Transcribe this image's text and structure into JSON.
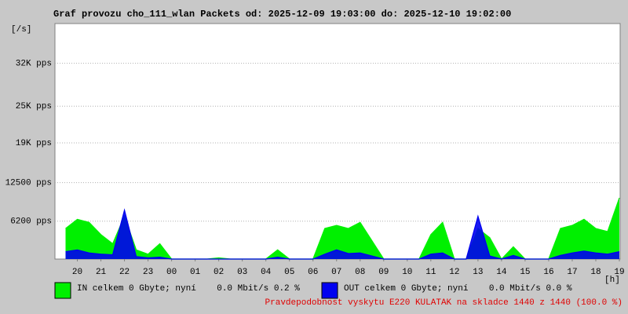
{
  "chart_data": {
    "type": "area",
    "title": "Graf provozu cho_111_wlan Packets od: 2025-12-09 19:03:00 do: 2025-12-10 19:02:00",
    "y_label": "[/s]",
    "x_label": "[h]",
    "note": "Pravdepodobnost vyskytu E220 KULATAK na skladce 1440 z 1440 (100.0 %)",
    "grid": true,
    "ylim": [
      0,
      38500
    ],
    "yticks": [
      {
        "value": 6200,
        "label": "6200 pps"
      },
      {
        "value": 12500,
        "label": "12500 pps"
      },
      {
        "value": 19000,
        "label": "19K pps"
      },
      {
        "value": 25000,
        "label": "25K pps"
      },
      {
        "value": 32000,
        "label": "32K pps"
      }
    ],
    "xlim": [
      19.05,
      43.033
    ],
    "xticks": [
      {
        "value": 20,
        "label": "20"
      },
      {
        "value": 21,
        "label": "21"
      },
      {
        "value": 22,
        "label": "22"
      },
      {
        "value": 23,
        "label": "23"
      },
      {
        "value": 24,
        "label": "00"
      },
      {
        "value": 25,
        "label": "01"
      },
      {
        "value": 26,
        "label": "02"
      },
      {
        "value": 27,
        "label": "03"
      },
      {
        "value": 28,
        "label": "04"
      },
      {
        "value": 29,
        "label": "05"
      },
      {
        "value": 30,
        "label": "06"
      },
      {
        "value": 31,
        "label": "07"
      },
      {
        "value": 32,
        "label": "08"
      },
      {
        "value": 33,
        "label": "09"
      },
      {
        "value": 34,
        "label": "10"
      },
      {
        "value": 35,
        "label": "11"
      },
      {
        "value": 36,
        "label": "12"
      },
      {
        "value": 37,
        "label": "13"
      },
      {
        "value": 38,
        "label": "14"
      },
      {
        "value": 39,
        "label": "15"
      },
      {
        "value": 40,
        "label": "16"
      },
      {
        "value": 41,
        "label": "17"
      },
      {
        "value": 42,
        "label": "18"
      },
      {
        "value": 43,
        "label": "19"
      }
    ],
    "x": [
      19.5,
      20,
      20.5,
      21,
      21.5,
      22,
      22.5,
      23,
      23.5,
      24,
      24.5,
      25,
      25.5,
      26,
      26.5,
      27,
      27.5,
      28,
      28.5,
      29,
      29.5,
      30,
      30.5,
      31,
      31.5,
      32,
      32.5,
      33,
      33.5,
      34,
      34.5,
      35,
      35.5,
      36,
      36.5,
      37,
      37.5,
      38,
      38.5,
      39,
      39.5,
      40,
      40.5,
      41,
      41.5,
      42,
      42.5,
      43
    ],
    "series": [
      {
        "name": "IN celkem 0 Gbyte; nyní    0.0 Mbit/s 0.2 %",
        "color": "#00f000",
        "values": [
          5000,
          6500,
          6000,
          4000,
          2500,
          7000,
          1500,
          800,
          2500,
          0,
          0,
          0,
          0,
          200,
          0,
          0,
          0,
          0,
          1500,
          0,
          0,
          0,
          5000,
          5500,
          5000,
          6000,
          3000,
          0,
          0,
          0,
          0,
          4000,
          6000,
          0,
          0,
          5000,
          3500,
          0,
          2000,
          0,
          0,
          0,
          5000,
          5500,
          6500,
          5000,
          4500,
          10000
        ]
      },
      {
        "name": "OUT celkem 0 Gbyte; nyní    0.0 Mbit/s 0.0 %",
        "color": "#0000f0",
        "values": [
          1200,
          1500,
          1000,
          800,
          700,
          8000,
          400,
          200,
          300,
          0,
          0,
          0,
          0,
          0,
          0,
          0,
          0,
          0,
          300,
          0,
          0,
          0,
          800,
          1500,
          900,
          1000,
          500,
          0,
          0,
          0,
          0,
          800,
          1000,
          0,
          0,
          7000,
          500,
          0,
          600,
          0,
          0,
          0,
          600,
          1000,
          1300,
          1000,
          800,
          1200
        ]
      }
    ]
  }
}
